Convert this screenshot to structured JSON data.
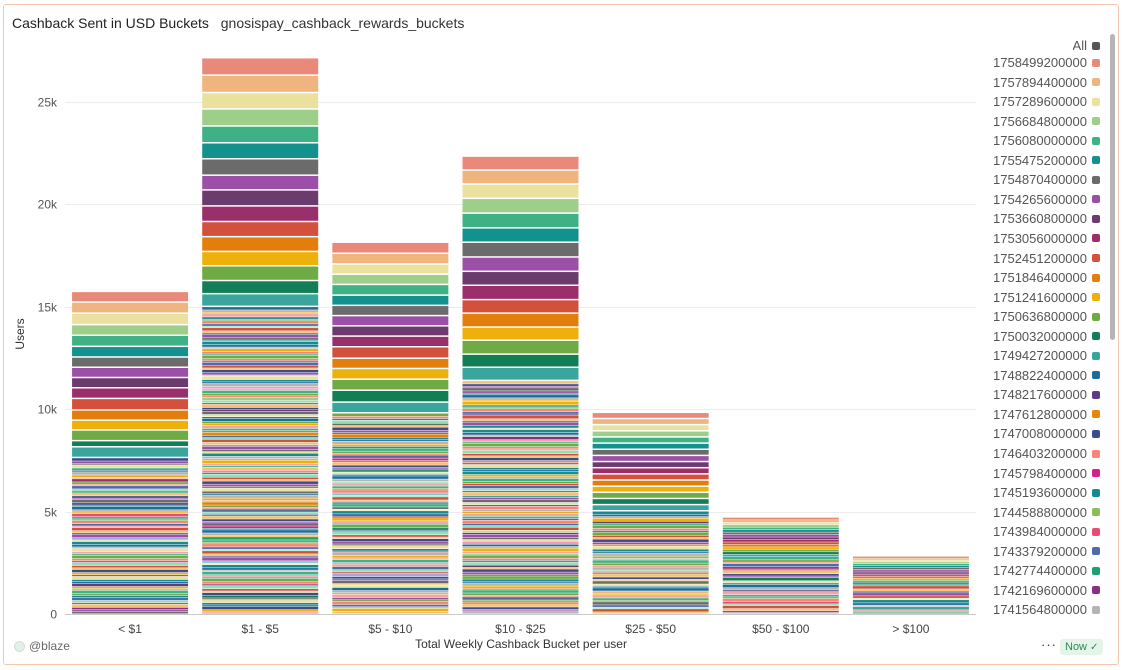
{
  "header": {
    "title": "Cashback Sent in USD Buckets",
    "subtitle": "gnosispay_cashback_rewards_buckets"
  },
  "footer": {
    "author": "@blaze",
    "more_label": "···",
    "status_label": "Now",
    "status_icon": "✓"
  },
  "colors": {
    "palette": [
      "#e8897a",
      "#f0b57e",
      "#ebe19e",
      "#9ecf8a",
      "#3fb285",
      "#12918e",
      "#6b6b6b",
      "#9b4fa6",
      "#6c3b6e",
      "#9b2f6b",
      "#d3503c",
      "#e27f0c",
      "#eeb10c",
      "#6fab45",
      "#127e55",
      "#3aa59d",
      "#1f6b9a",
      "#5e3a8a",
      "#e6870c",
      "#3d4b8c",
      "#f78474",
      "#d81f8b",
      "#138a95",
      "#8bbf56",
      "#e84b73",
      "#4b6ba9",
      "#1aa16f",
      "#8a2f82",
      "#b4b4b4",
      "#f4a3a8",
      "#c9e27c",
      "#8fe0b5",
      "#d7b089",
      "#f2c270",
      "#a4a6e3",
      "#f596c4",
      "#7ec6d8"
    ],
    "all_swatch": "#555555"
  },
  "legend": {
    "all_label": "All",
    "items": [
      "1758499200000",
      "1757894400000",
      "1757289600000",
      "1756684800000",
      "1756080000000",
      "1755475200000",
      "1754870400000",
      "1754265600000",
      "1753660800000",
      "1753056000000",
      "1752451200000",
      "1751846400000",
      "1751241600000",
      "1750636800000",
      "1750032000000",
      "1749427200000",
      "1748822400000",
      "1748217600000",
      "1747612800000",
      "1747008000000",
      "1746403200000",
      "1745798400000",
      "1745193600000",
      "1744588800000",
      "1743984000000",
      "1743379200000",
      "1742774400000",
      "1742169600000",
      "1741564800000"
    ]
  },
  "chart_data": {
    "type": "bar",
    "stacked": true,
    "categories": [
      "< $1",
      "$1 - $5",
      "$5 - $10",
      "$10 - $25",
      "$25 - $50",
      "$50 - $100",
      "> $100"
    ],
    "totals": [
      15700,
      27100,
      18100,
      22300,
      9800,
      4700,
      2800
    ],
    "top_segment_values": [
      [
        520,
        540,
        560,
        520,
        540,
        520,
        500,
        500,
        500,
        520,
        560,
        500,
        480,
        520,
        300,
        520
      ],
      [
        850,
        850,
        800,
        830,
        820,
        780,
        800,
        720,
        780,
        760,
        740,
        720,
        700,
        720,
        640,
        620
      ],
      [
        540,
        520,
        500,
        500,
        520,
        500,
        500,
        500,
        500,
        520,
        560,
        500,
        520,
        540,
        580,
        520
      ],
      [
        680,
        680,
        700,
        720,
        720,
        700,
        720,
        700,
        680,
        700,
        660,
        680,
        640,
        680,
        640,
        640
      ],
      [
        300,
        300,
        300,
        300,
        300,
        300,
        300,
        300,
        300,
        300,
        300,
        300,
        300,
        300,
        300,
        300
      ],
      [
        120,
        120,
        120,
        120,
        120,
        120,
        120,
        120,
        120,
        120,
        120,
        120,
        120,
        120,
        120,
        120
      ],
      [
        90,
        90,
        90,
        90,
        90,
        90,
        90,
        90,
        90,
        90,
        90,
        90,
        90,
        90,
        90,
        90
      ]
    ],
    "title": "Cashback Sent in USD Buckets",
    "xlabel": "Total Weekly Cashback Bucket per user",
    "ylabel": "Users",
    "ylim": [
      0,
      28000
    ],
    "yticks": [
      0,
      5000,
      10000,
      15000,
      20000,
      25000
    ],
    "ytick_labels": [
      "0",
      "5k",
      "10k",
      "15k",
      "20k",
      "25k"
    ],
    "grid": true,
    "legend_position": "right"
  }
}
